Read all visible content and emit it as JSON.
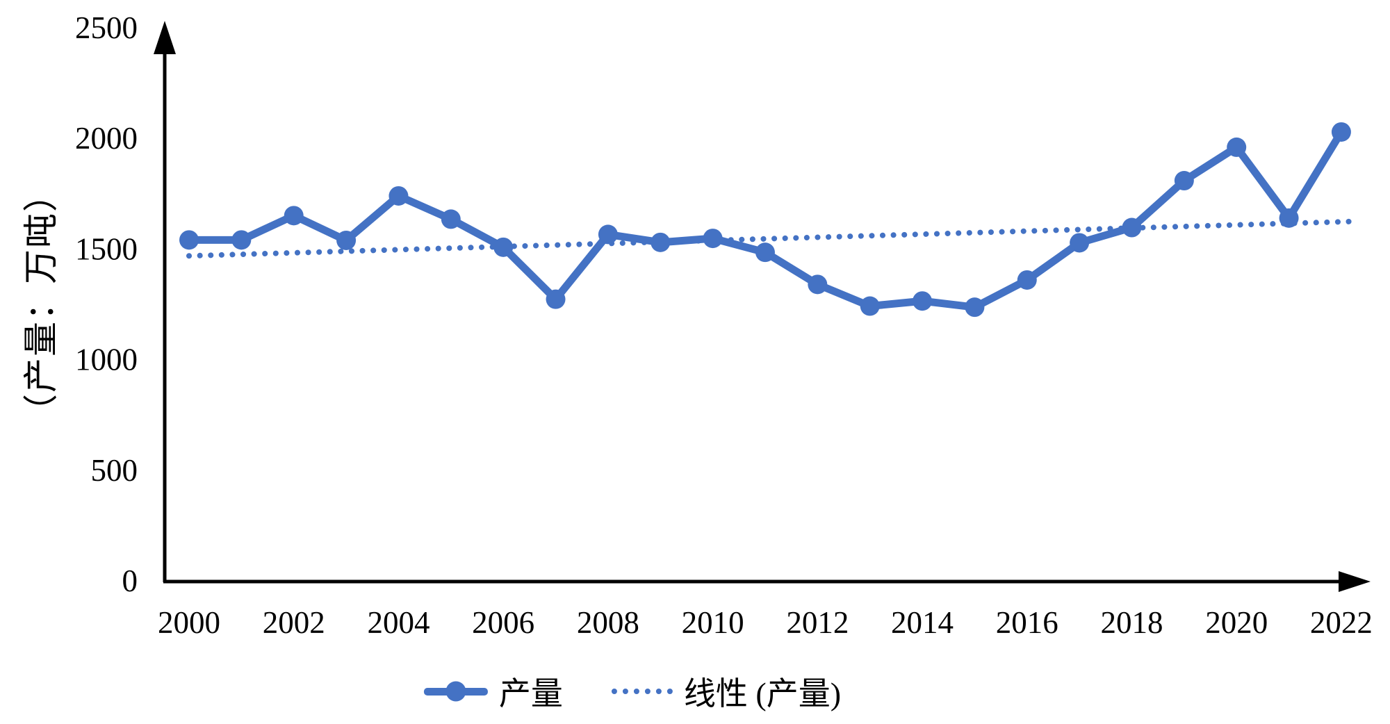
{
  "chart_data": {
    "type": "line",
    "title": "",
    "x": [
      2000,
      2001,
      2002,
      2003,
      2004,
      2005,
      2006,
      2007,
      2008,
      2009,
      2010,
      2011,
      2012,
      2013,
      2014,
      2015,
      2016,
      2017,
      2018,
      2019,
      2020,
      2021,
      2022
    ],
    "series": [
      {
        "name": "产量",
        "values": [
          1541,
          1541,
          1651,
          1539,
          1740,
          1635,
          1508,
          1273,
          1566,
          1530,
          1548,
          1485,
          1340,
          1242,
          1265,
          1237,
          1360,
          1528,
          1597,
          1809,
          1960,
          1640,
          2029
        ]
      }
    ],
    "trendline": {
      "name": "线性 (产量)",
      "style": "dotted",
      "value_at_2000": 1469,
      "value_at_2022": 1623
    },
    "xlabel": "",
    "ylabel": "（产量：万吨）",
    "ylim": [
      0,
      2500
    ],
    "yticks": [
      0,
      500,
      1000,
      1500,
      2000,
      2500
    ],
    "xticks": [
      2000,
      2002,
      2004,
      2006,
      2008,
      2010,
      2012,
      2014,
      2016,
      2018,
      2020,
      2022
    ],
    "grid": false,
    "legend": {
      "position": "bottom",
      "entries": [
        "产量",
        "线性 (产量)"
      ]
    },
    "colors": {
      "series": "#4472C4",
      "trendline": "#4472C4",
      "axis": "#000000",
      "text": "#000000",
      "background": "#FFFFFF"
    }
  }
}
